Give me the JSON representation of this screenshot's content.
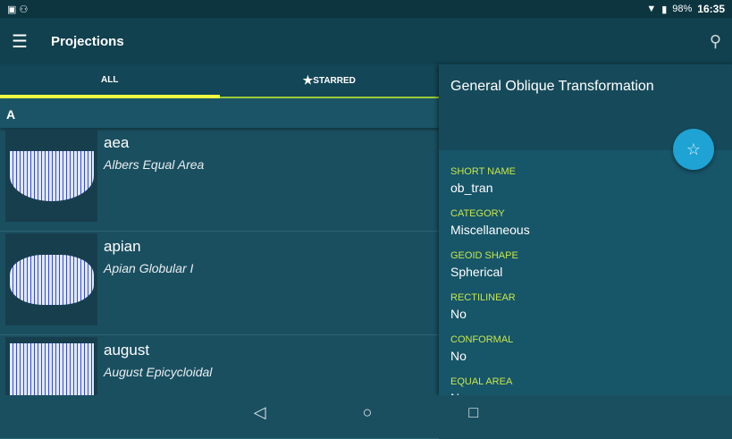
{
  "status": {
    "battery": "98%",
    "time": "16:35"
  },
  "toolbar": {
    "title": "Projections"
  },
  "tabs": [
    {
      "label": "ALL"
    },
    {
      "label": "STARRED"
    }
  ],
  "section": "A",
  "items": [
    {
      "name": "aea",
      "desc": "Albers Equal Area"
    },
    {
      "name": "apian",
      "desc": "Apian Globular I"
    },
    {
      "name": "august",
      "desc": "August Epicycloidal"
    }
  ],
  "detail": {
    "title": "General Oblique Transformation",
    "props": [
      {
        "label": "SHORT NAME",
        "value": "ob_tran"
      },
      {
        "label": "CATEGORY",
        "value": "Miscellaneous"
      },
      {
        "label": "GEOID SHAPE",
        "value": "Spherical"
      },
      {
        "label": "RECTILINEAR",
        "value": "No"
      },
      {
        "label": "CONFORMAL",
        "value": "No"
      },
      {
        "label": "EQUAL AREA",
        "value": "No"
      }
    ]
  },
  "colors": {
    "accent": "#eeff41",
    "label": "#c6e74d",
    "fab": "#1fa3d4"
  }
}
